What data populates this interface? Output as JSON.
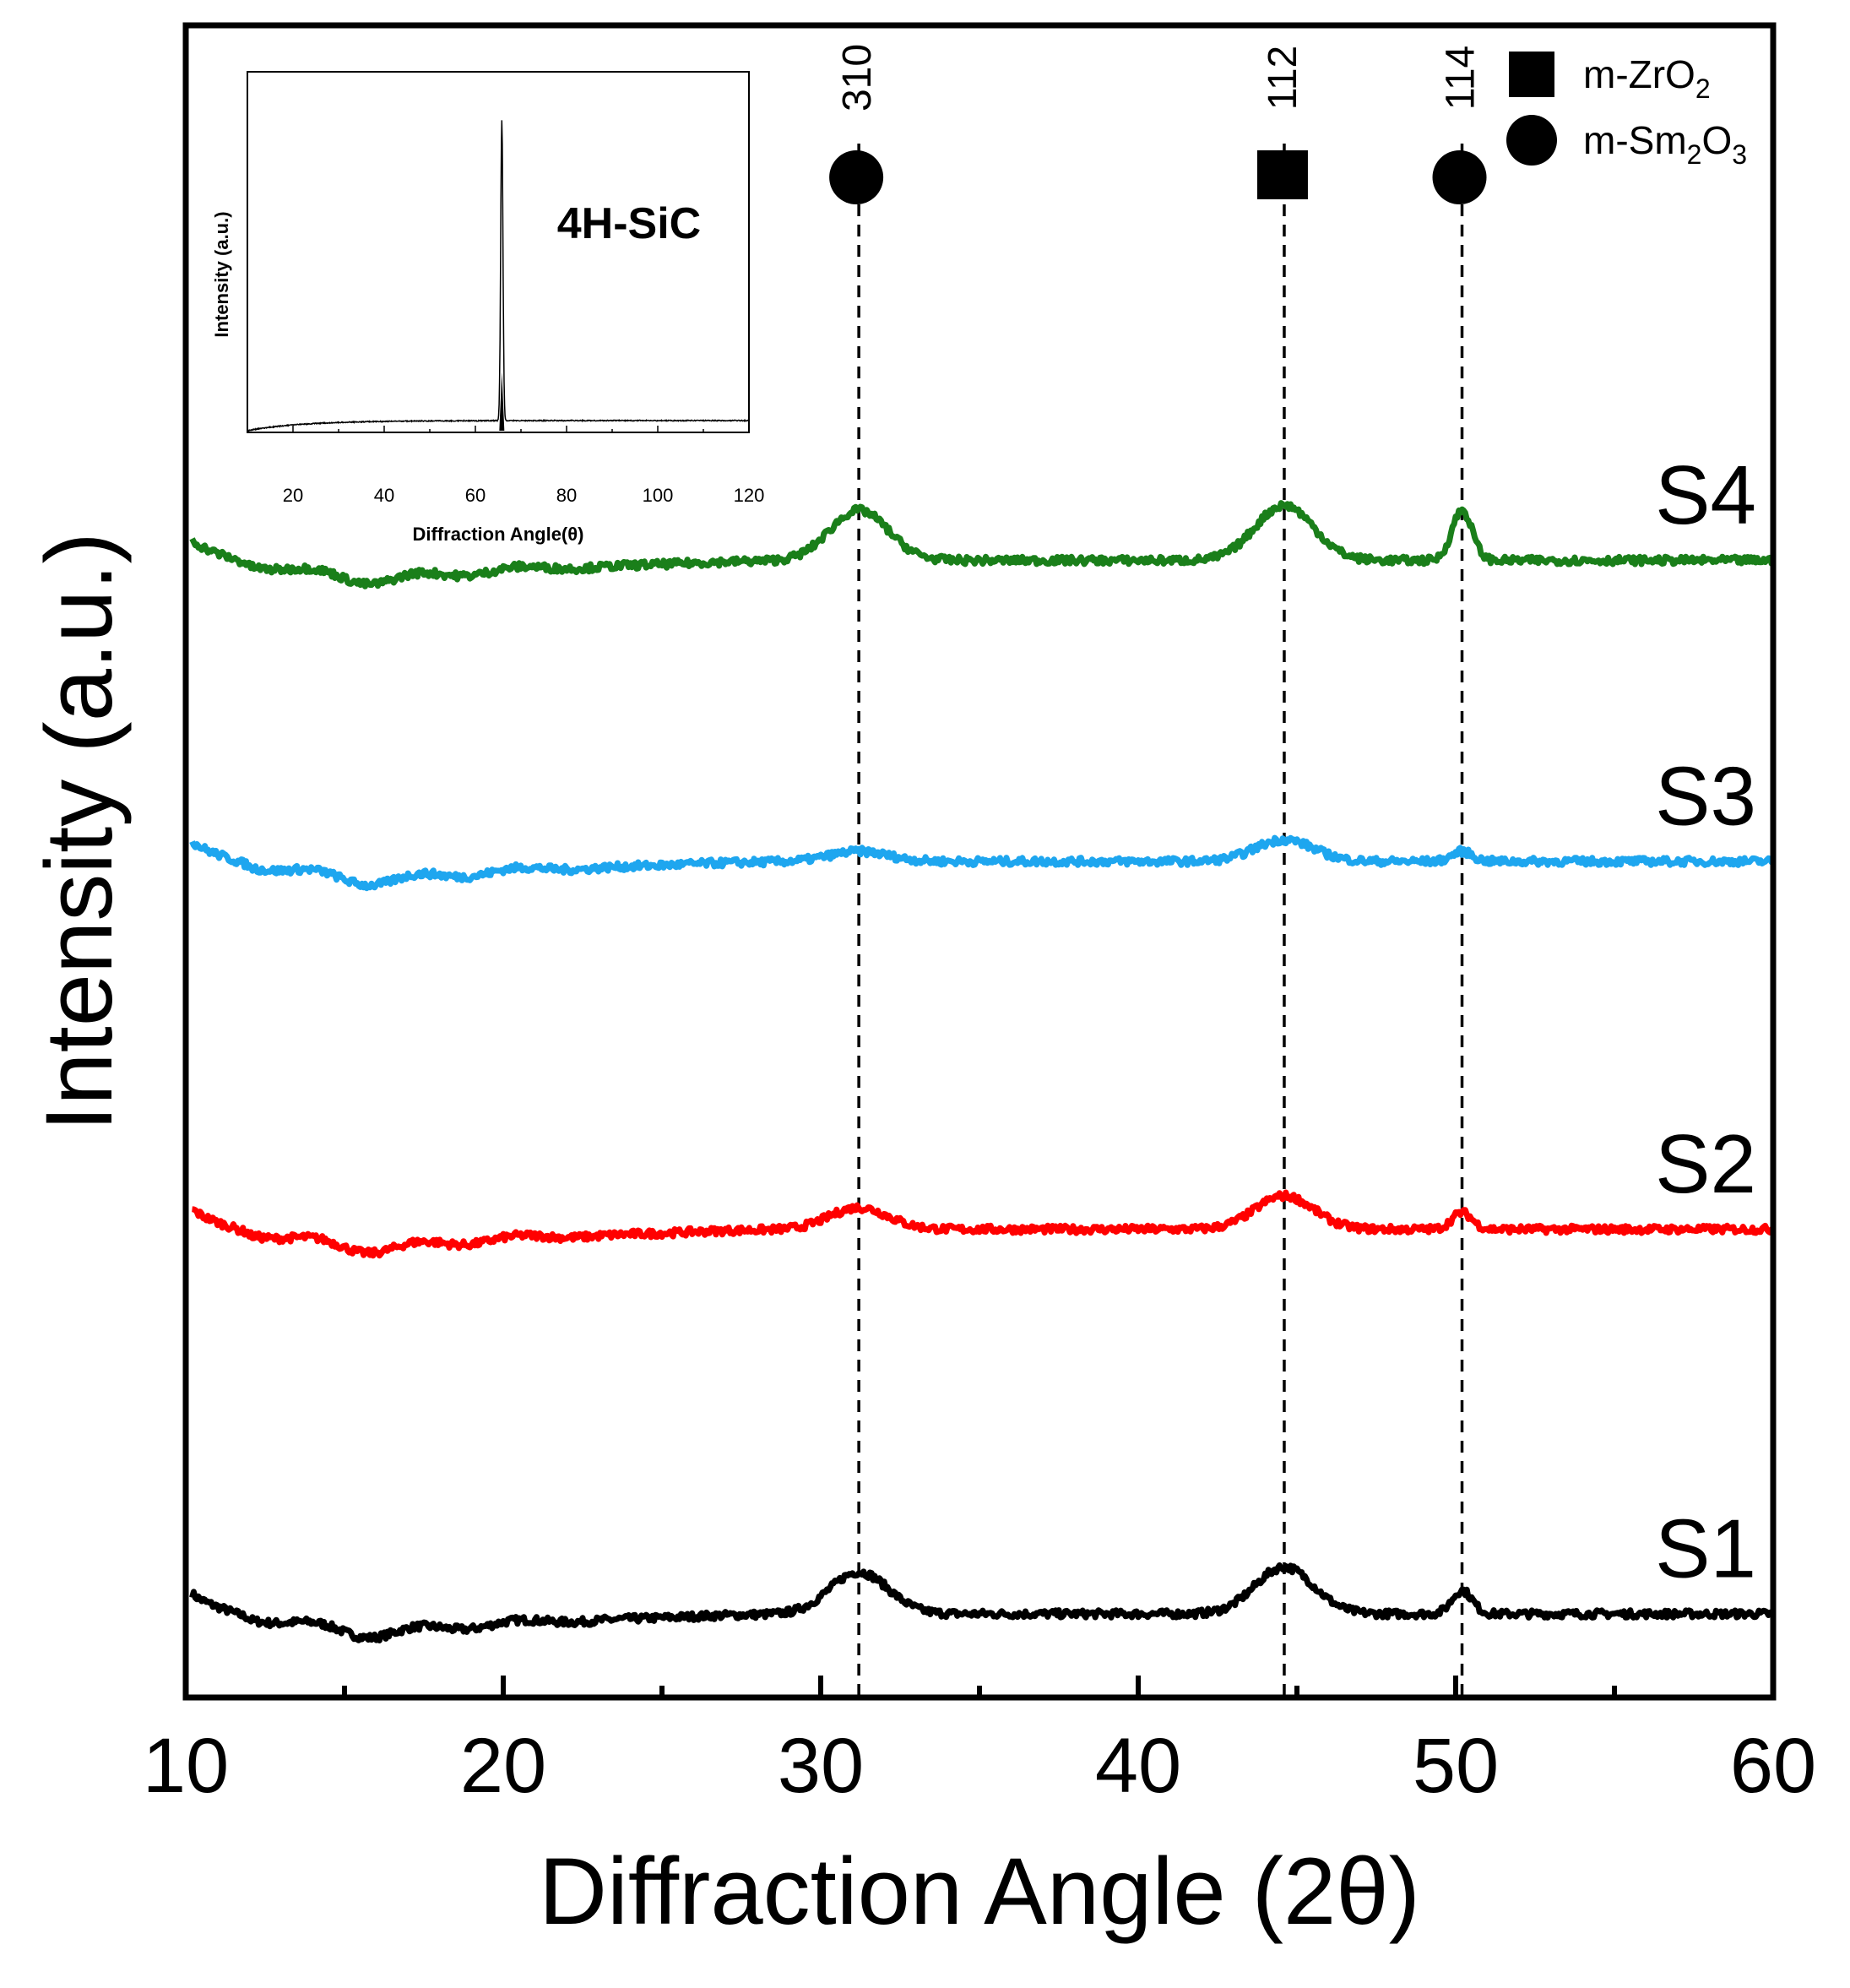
{
  "chart_data": {
    "type": "line",
    "xlabel": "Diffraction Angle (2θ)",
    "ylabel": "Intensity (a.u.)",
    "xlim": [
      10,
      60
    ],
    "x_ticks": [
      "10",
      "20",
      "30",
      "40",
      "50",
      "60"
    ],
    "grid": false,
    "series": [
      {
        "name": "S1",
        "color": "#000000",
        "baseline": 0.05,
        "peaks": [
          [
            31.2,
            0.025
          ],
          [
            44.6,
            0.028
          ],
          [
            50.2,
            0.014
          ]
        ]
      },
      {
        "name": "S2",
        "color": "#ff0000",
        "baseline": 0.28,
        "peaks": [
          [
            31.2,
            0.013
          ],
          [
            44.6,
            0.02
          ],
          [
            50.2,
            0.01
          ]
        ]
      },
      {
        "name": "S3",
        "color": "#1ea6ef",
        "baseline": 0.5,
        "peaks": [
          [
            31.2,
            0.006
          ],
          [
            44.6,
            0.013
          ],
          [
            50.2,
            0.006
          ]
        ]
      },
      {
        "name": "S4",
        "color": "#1a7f1a",
        "baseline": 0.68,
        "peaks": [
          [
            31.2,
            0.03
          ],
          [
            44.6,
            0.033
          ],
          [
            50.2,
            0.03
          ]
        ]
      }
    ],
    "reference_lines": [
      {
        "x": 31.2,
        "label": "310",
        "marker": "circle"
      },
      {
        "x": 44.6,
        "label": "112",
        "marker": "square"
      },
      {
        "x": 50.2,
        "label": "114",
        "marker": "circle"
      }
    ],
    "legend": {
      "placement": "top-right",
      "entries": [
        {
          "marker": "square",
          "label": "m-ZrO",
          "sub": "2"
        },
        {
          "marker": "circle",
          "label": "m-Sm",
          "sub": "2",
          "label2": "O",
          "sub2": "3"
        }
      ]
    },
    "inset": {
      "type": "line",
      "title": "4H-SiC",
      "xlabel": "Diffraction Angle(θ)",
      "ylabel": "Intensity (a.u.)",
      "xlim": [
        10,
        120
      ],
      "x_ticks": [
        "20",
        "40",
        "60",
        "80",
        "100",
        "120"
      ],
      "peak_x": 65.8
    }
  }
}
